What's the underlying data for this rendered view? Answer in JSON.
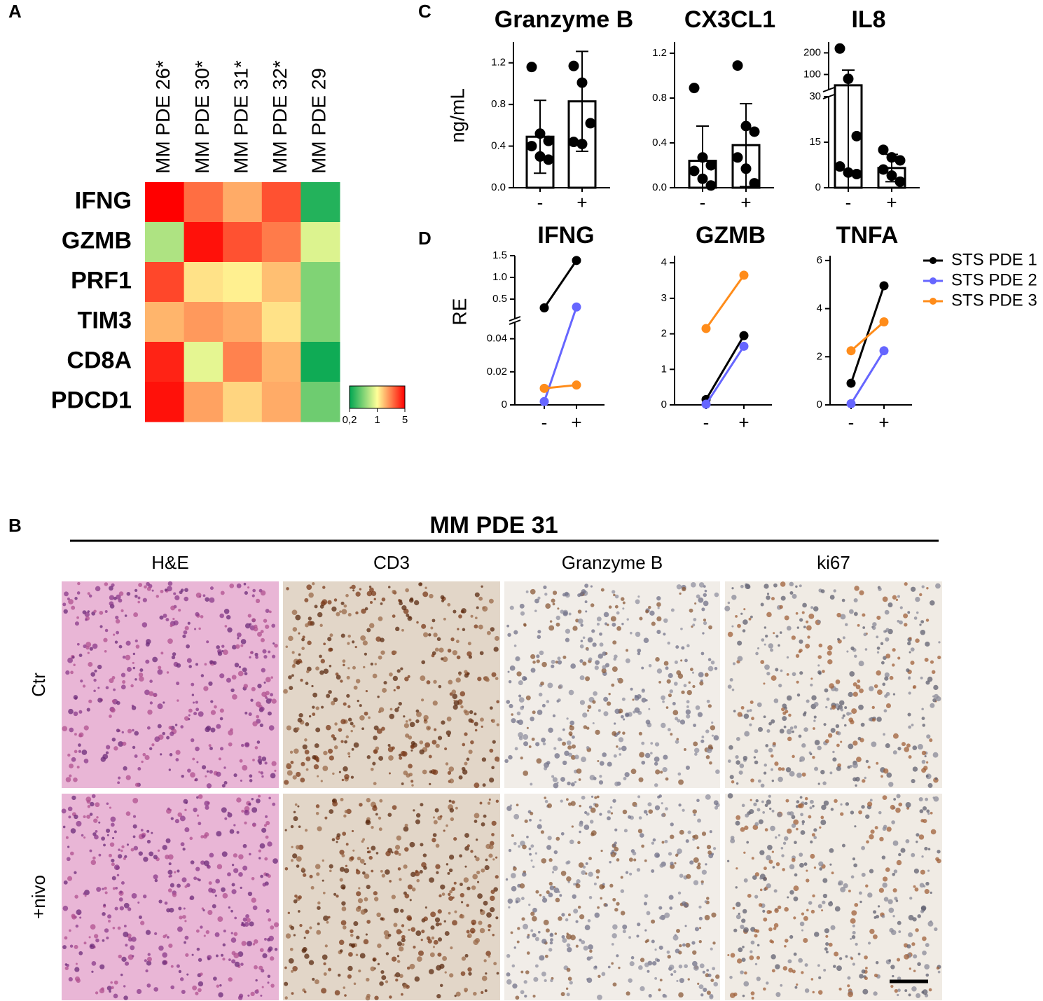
{
  "chart_data": [
    {
      "type": "heatmap",
      "panel_label": "A",
      "columns": [
        "MM PDE 26*",
        "MM PDE 30*",
        "MM PDE 31*",
        "MM PDE 32*",
        "MM PDE 29"
      ],
      "rows": [
        "IFNG",
        "GZMB",
        "PRF1",
        "TIM3",
        "CD8A",
        "PDCD1"
      ],
      "values": [
        [
          5,
          2.5,
          1.7,
          3,
          0.25
        ],
        [
          0.6,
          4.5,
          3,
          2.3,
          0.8
        ],
        [
          3.2,
          1.2,
          1.1,
          1.5,
          0.45
        ],
        [
          1.6,
          1.9,
          1.7,
          1.2,
          0.45
        ],
        [
          4,
          0.85,
          2.2,
          1.6,
          0.22
        ],
        [
          4.5,
          1.8,
          1.3,
          1.7,
          0.4
        ]
      ],
      "colorbar": {
        "range": [
          0.2,
          5
        ],
        "scale": "log",
        "colors": [
          "#00a651",
          "#ffff99",
          "#ff0000"
        ],
        "ticks": [
          {
            "value": 0.2,
            "label": "0,2"
          },
          1,
          5
        ]
      }
    },
    {
      "type": "bar",
      "panel_label": "C",
      "ylabel": "ng/mL",
      "categories": [
        "-",
        "+"
      ],
      "panels": [
        {
          "title": "Granzyme B",
          "ylim": [
            0,
            1.4
          ],
          "yticks": [
            {
              "value": 0,
              "label": "0.0"
            },
            0.4,
            0.8,
            1.2
          ],
          "values": [
            0.49,
            0.83
          ],
          "errors": [
            0.35,
            0.48
          ],
          "points": [
            [
              1.16,
              0.52,
              0.45,
              0.4,
              0.3,
              0.27
            ],
            [
              1.17,
              1.01,
              0.62,
              0.44,
              0.42
            ]
          ]
        },
        {
          "title": "CX3CL1",
          "ylim": [
            0,
            1.3
          ],
          "yticks": [
            {
              "value": 0,
              "label": "0.0"
            },
            0.4,
            0.8,
            1.2
          ],
          "values": [
            0.24,
            0.38
          ],
          "errors": [
            0.31,
            0.37
          ],
          "points": [
            [
              0.89,
              0.27,
              0.2,
              0.15,
              0.08,
              0.02
            ],
            [
              1.09,
              0.55,
              0.5,
              0.27,
              0.17,
              0.04
            ]
          ]
        },
        {
          "title": "IL8",
          "ylim": [
            0,
            250
          ],
          "axis_break": {
            "lower": [
              0,
              30
            ],
            "upper": [
              30,
              250
            ]
          },
          "yticks": [
            0,
            15,
            30,
            100,
            200
          ],
          "values": [
            50,
            6.5
          ],
          "errors": [
            70,
            4.5
          ],
          "points": [
            [
              220,
              80,
              17,
              7,
              5,
              4.5
            ],
            [
              12.5,
              10,
              9,
              6,
              4,
              2
            ]
          ]
        }
      ]
    },
    {
      "type": "line",
      "panel_label": "D",
      "ylabel": "RE",
      "categories": [
        "-",
        "+"
      ],
      "series": [
        {
          "name": "STS PDE 1",
          "color": "#000000"
        },
        {
          "name": "STS PDE 2",
          "color": "#6666ff"
        },
        {
          "name": "STS PDE 3",
          "color": "#ff8c1a"
        }
      ],
      "panels": [
        {
          "title": "IFNG",
          "ylim": [
            0,
            1.5
          ],
          "axis_break": {
            "lower": [
              0,
              0.05
            ],
            "upper": [
              0.05,
              1.5
            ]
          },
          "yticks": [
            0,
            0.02,
            0.04,
            0.5,
            {
              "value": 1,
              "label": "1.0"
            },
            1.5
          ],
          "series_values": [
            [
              0.3,
              1.39
            ],
            [
              0.002,
              0.32
            ],
            [
              0.01,
              0.012
            ]
          ]
        },
        {
          "title": "GZMB",
          "ylim": [
            0,
            4.2
          ],
          "yticks": [
            0,
            1,
            2,
            3,
            4
          ],
          "series_values": [
            [
              0.15,
              1.95
            ],
            [
              0.02,
              1.65
            ],
            [
              2.15,
              3.65
            ]
          ]
        },
        {
          "title": "TNFA",
          "ylim": [
            0,
            6.2
          ],
          "yticks": [
            0,
            2,
            4,
            6
          ],
          "series_values": [
            [
              0.9,
              4.95
            ],
            [
              0.05,
              2.25
            ],
            [
              2.25,
              3.45
            ]
          ]
        }
      ]
    }
  ],
  "histology": {
    "panel_label": "B",
    "title": "MM PDE 31",
    "columns": [
      "H&E",
      "CD3",
      "Granzyme B",
      "ki67"
    ],
    "rows": [
      "Ctr",
      "+nivo"
    ]
  }
}
